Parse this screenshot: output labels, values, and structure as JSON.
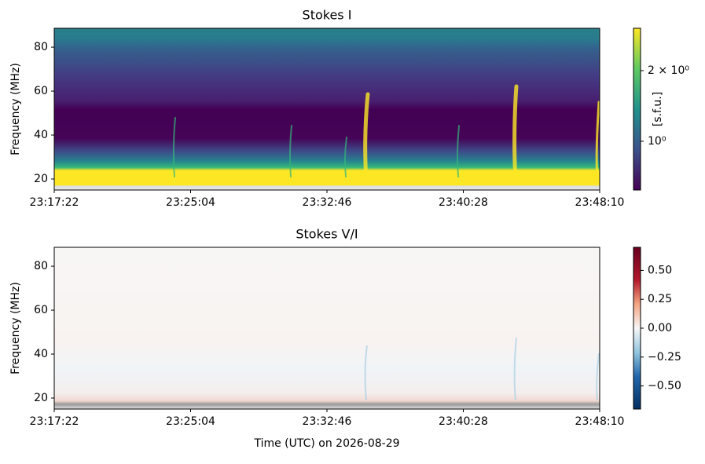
{
  "chart_data": [
    {
      "type": "spectrogram",
      "title": "Stokes I",
      "ylabel": "Frequency (MHz)",
      "xticks": [
        "23:17:22",
        "23:25:04",
        "23:32:46",
        "23:40:28",
        "23:48:10"
      ],
      "ylim": [
        15,
        88.6
      ],
      "yticks": [
        20,
        40,
        60,
        80
      ],
      "colormap": "viridis",
      "colorbar": {
        "label": "[s.f.u.]",
        "log": true,
        "lim": [
          0.62,
          3.03
        ],
        "ticks": [
          {
            "value": 1,
            "label": "10⁰"
          },
          {
            "value": 2,
            "label": "2 × 10⁰"
          }
        ]
      }
    },
    {
      "type": "spectrogram",
      "title": "Stokes V/I",
      "ylabel": "Frequency (MHz)",
      "xlabel": "Time (UTC) on 2026-08-29",
      "xticks": [
        "23:17:22",
        "23:25:04",
        "23:32:46",
        "23:40:28",
        "23:48:10"
      ],
      "ylim": [
        15,
        88.6
      ],
      "yticks": [
        20,
        40,
        60,
        80
      ],
      "colormap": "rdbu",
      "colorbar": {
        "log": false,
        "lim": [
          -0.7,
          0.7
        ],
        "ticks": [
          {
            "value": 0.5,
            "label": "0.50"
          },
          {
            "value": 0.25,
            "label": "0.25"
          },
          {
            "value": 0,
            "label": "0.00"
          },
          {
            "value": -0.25,
            "label": "−0.25"
          },
          {
            "value": -0.5,
            "label": "−0.50"
          }
        ]
      }
    }
  ]
}
